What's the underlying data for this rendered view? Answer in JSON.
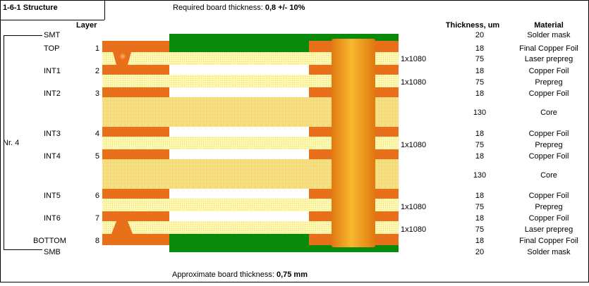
{
  "header": {
    "title": "1-6-1 Structure",
    "required_label": "Required board thickness: ",
    "required_value": "0,8 +/- 10%"
  },
  "columns": {
    "layer": "Layer",
    "thickness": "Thickness, um",
    "material": "Material"
  },
  "group_label": "Nr. 4",
  "rows": [
    {
      "name": "SMT",
      "num": "",
      "glass": "",
      "thickness": "20",
      "material": "Solder mask"
    },
    {
      "name": "TOP",
      "num": "1",
      "glass": "",
      "thickness": "18",
      "material": "Final Copper Foil"
    },
    {
      "name": "",
      "num": "",
      "glass": "1x1080",
      "thickness": "75",
      "material": "Laser prepreg"
    },
    {
      "name": "INT1",
      "num": "2",
      "glass": "",
      "thickness": "18",
      "material": "Copper Foil"
    },
    {
      "name": "",
      "num": "",
      "glass": "1x1080",
      "thickness": "75",
      "material": "Prepreg"
    },
    {
      "name": "INT2",
      "num": "3",
      "glass": "",
      "thickness": "18",
      "material": "Copper Foil"
    },
    {
      "name": "",
      "num": "",
      "glass": "",
      "thickness": "130",
      "material": "Core"
    },
    {
      "name": "INT3",
      "num": "4",
      "glass": "",
      "thickness": "18",
      "material": "Copper Foil"
    },
    {
      "name": "",
      "num": "",
      "glass": "1x1080",
      "thickness": "75",
      "material": "Prepreg"
    },
    {
      "name": "INT4",
      "num": "5",
      "glass": "",
      "thickness": "18",
      "material": "Copper Foil"
    },
    {
      "name": "",
      "num": "",
      "glass": "",
      "thickness": "130",
      "material": "Core"
    },
    {
      "name": "INT5",
      "num": "6",
      "glass": "",
      "thickness": "18",
      "material": "Copper Foil"
    },
    {
      "name": "",
      "num": "",
      "glass": "1x1080",
      "thickness": "75",
      "material": "Prepreg"
    },
    {
      "name": "INT6",
      "num": "7",
      "glass": "",
      "thickness": "18",
      "material": "Copper Foil"
    },
    {
      "name": "",
      "num": "",
      "glass": "1x1080",
      "thickness": "75",
      "material": "Laser prepreg"
    },
    {
      "name": "BOTTOM",
      "num": "8",
      "glass": "",
      "thickness": "18",
      "material": "Final Copper Foil"
    },
    {
      "name": "SMB",
      "num": "",
      "glass": "",
      "thickness": "20",
      "material": "Solder mask"
    }
  ],
  "footer": {
    "approx_label": "Approximate board thickness: ",
    "approx_value": "0,75 mm"
  },
  "colors": {
    "copper": "#e8701a",
    "prepreg": "#fff8b0",
    "core": "#fde48a",
    "mask": "#0a8a0a",
    "via_dark": "#e07810",
    "via_light": "#f8b830"
  }
}
